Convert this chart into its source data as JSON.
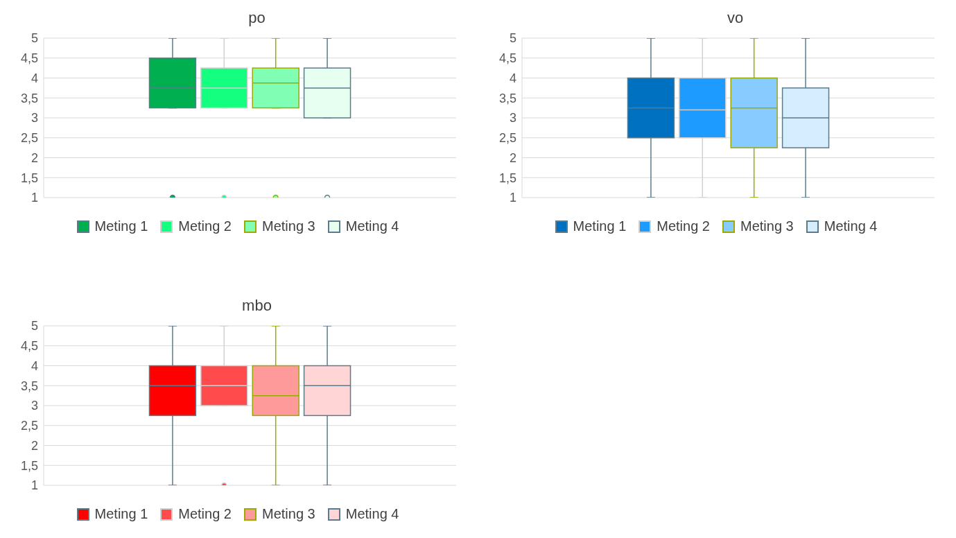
{
  "chart_data": [
    {
      "type": "box",
      "title": "po",
      "categories": [
        null
      ],
      "ylim": [
        1,
        5
      ],
      "yticks": [
        1,
        {
          "value": 1.5,
          "label": "1,5"
        },
        2,
        {
          "value": 2.5,
          "label": "2,5"
        },
        3,
        {
          "value": 3.5,
          "label": "3,5"
        },
        4,
        {
          "value": 4.5,
          "label": "4,5"
        },
        5
      ],
      "grid": "y",
      "legend": "bottom",
      "series": [
        {
          "name": "Meting 1",
          "color": "#00b050",
          "boxes": [
            {
              "low": 3.25,
              "q1": 3.25,
              "median": 3.75,
              "q3": 4.5,
              "high": 5,
              "outliers": [
                1
              ]
            }
          ]
        },
        {
          "name": "Meting 2",
          "color": "#14ff80",
          "boxes": [
            {
              "low": 3.25,
              "q1": 3.25,
              "median": 3.75,
              "q3": 4.25,
              "high": 5,
              "outliers": [
                1
              ]
            }
          ]
        },
        {
          "name": "Meting 3",
          "color": "#80ffb4",
          "boxes": [
            {
              "low": 3.25,
              "q1": 3.25,
              "median": 3.875,
              "q3": 4.25,
              "high": 5,
              "outliers": [
                1
              ]
            }
          ]
        },
        {
          "name": "Meting 4",
          "color": "#e6fff0",
          "boxes": [
            {
              "low": 3,
              "q1": 3,
              "median": 3.75,
              "q3": 4.25,
              "high": 5,
              "outliers": [
                1
              ]
            }
          ]
        }
      ]
    },
    {
      "type": "box",
      "title": "vo",
      "categories": [
        null
      ],
      "ylim": [
        1,
        5
      ],
      "yticks": [
        1,
        {
          "value": 1.5,
          "label": "1,5"
        },
        2,
        {
          "value": 2.5,
          "label": "2,5"
        },
        3,
        {
          "value": 3.5,
          "label": "3,5"
        },
        4,
        {
          "value": 4.5,
          "label": "4,5"
        },
        5
      ],
      "grid": "y",
      "legend": "bottom",
      "series": [
        {
          "name": "Meting 1",
          "color": "#0070c0",
          "boxes": [
            {
              "low": 1,
              "q1": 2.5,
              "median": 3.25,
              "q3": 4,
              "high": 5
            }
          ]
        },
        {
          "name": "Meting 2",
          "color": "#1e9bff",
          "boxes": [
            {
              "low": 1,
              "q1": 2.5,
              "median": 3.2,
              "q3": 4,
              "high": 5
            }
          ]
        },
        {
          "name": "Meting 3",
          "color": "#87cbff",
          "boxes": [
            {
              "low": 1,
              "q1": 2.25,
              "median": 3.25,
              "q3": 4,
              "high": 5
            }
          ]
        },
        {
          "name": "Meting 4",
          "color": "#d6ecff",
          "boxes": [
            {
              "low": 1,
              "q1": 2.25,
              "median": 3,
              "q3": 3.75,
              "high": 5
            }
          ]
        }
      ]
    },
    {
      "type": "box",
      "title": "mbo",
      "categories": [
        null
      ],
      "ylim": [
        1,
        5
      ],
      "yticks": [
        1,
        {
          "value": 1.5,
          "label": "1,5"
        },
        2,
        {
          "value": 2.5,
          "label": "2,5"
        },
        3,
        {
          "value": 3.5,
          "label": "3,5"
        },
        4,
        {
          "value": 4.5,
          "label": "4,5"
        },
        5
      ],
      "grid": "y",
      "legend": "bottom",
      "series": [
        {
          "name": "Meting 1",
          "color": "#ff0000",
          "boxes": [
            {
              "low": 1,
              "q1": 2.75,
              "median": 3.5,
              "q3": 4,
              "high": 5
            }
          ]
        },
        {
          "name": "Meting 2",
          "color": "#ff4b4b",
          "boxes": [
            {
              "low": 3,
              "q1": 3,
              "median": 3.5,
              "q3": 4,
              "high": 5,
              "outliers": [
                1
              ]
            }
          ]
        },
        {
          "name": "Meting 3",
          "color": "#ff9a9a",
          "boxes": [
            {
              "low": 1,
              "q1": 2.75,
              "median": 3.25,
              "q3": 4,
              "high": 5
            }
          ]
        },
        {
          "name": "Meting 4",
          "color": "#ffd5d5",
          "boxes": [
            {
              "low": 1,
              "q1": 2.75,
              "median": 3.5,
              "q3": 4,
              "high": 5
            }
          ]
        }
      ]
    }
  ]
}
